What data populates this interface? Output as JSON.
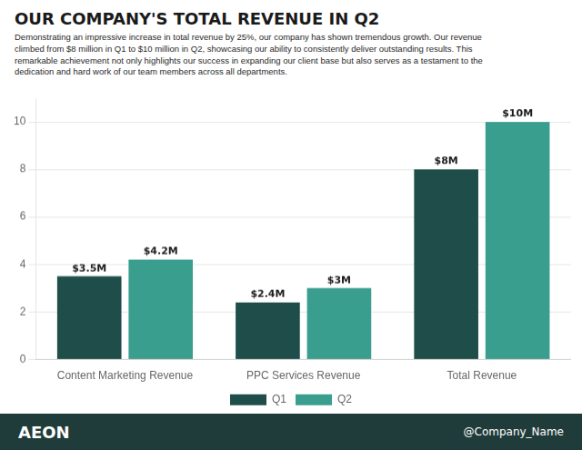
{
  "chart_data": {
    "type": "bar",
    "title": "OUR COMPANY'S TOTAL REVENUE IN Q2",
    "subtitle": "Demonstrating an impressive increase in total revenue by 25%, our company has shown tremendous growth. Our revenue\nclimbed from $8 million in Q1 to $10 million in Q2, showcasing our ability to consistently deliver outstanding results. This\nremarkable achievement not only highlights our success in expanding our client base but also serves as a testament to the\ndedication and hard work of our team members across all departments.",
    "categories": [
      "Content Marketing Revenue",
      "PPC Services Revenue",
      "Total Revenue"
    ],
    "series": [
      {
        "name": "Q1",
        "color": "#1f4e4a",
        "values": [
          3.5,
          2.4,
          8.0
        ],
        "value_labels": [
          "$3.5M",
          "$2.4M",
          "$8M"
        ]
      },
      {
        "name": "Q2",
        "color": "#3a9e8f",
        "values": [
          4.2,
          3.0,
          10.0
        ],
        "value_labels": [
          "$4.2M",
          "$3M",
          "$10M"
        ]
      }
    ],
    "ylim": [
      0,
      11
    ],
    "yticks": [
      0,
      2,
      4,
      6,
      8,
      10
    ],
    "grid": true,
    "legend": "bottom",
    "data_labels": true,
    "annotations": [
      "AEON",
      "@Company_Name"
    ]
  }
}
